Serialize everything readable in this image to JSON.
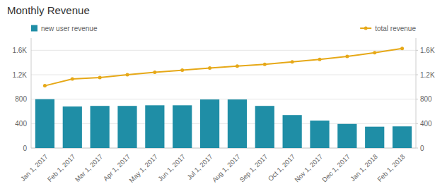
{
  "chart_data": {
    "type": "bar",
    "title": "Monthly Revenue",
    "categories": [
      "Jan 1, 2017",
      "Feb 1, 2017",
      "Mar 1, 2017",
      "Apr 1, 2017",
      "May 1, 2017",
      "Jun 1, 2017",
      "Jul 1, 2017",
      "Aug 1, 2017",
      "Sep 1, 2017",
      "Oct 1, 2017",
      "Nov 1, 2017",
      "Dec 1, 2017",
      "Jan 1, 2018",
      "Feb 1, 2018"
    ],
    "series": [
      {
        "name": "new user revenue",
        "type": "bar",
        "color": "#1f8ea6",
        "values": [
          800,
          680,
          690,
          690,
          700,
          700,
          795,
          795,
          690,
          540,
          450,
          395,
          350,
          355
        ]
      },
      {
        "name": "total revenue",
        "type": "line",
        "color": "#e6a817",
        "marker": "circle",
        "axis": "y2",
        "values": [
          1020,
          1130,
          1155,
          1200,
          1240,
          1275,
          1310,
          1340,
          1370,
          1410,
          1450,
          1500,
          1560,
          1630
        ]
      }
    ],
    "ylim": [
      0,
      1800
    ],
    "yticks": [
      0,
      400,
      800,
      {
        "value": 1200,
        "label": "1.2K"
      },
      {
        "value": 1600,
        "label": "1.6K"
      }
    ],
    "y2lim": [
      0,
      1800
    ],
    "y2ticks": [
      0,
      400,
      800,
      {
        "value": 1200,
        "label": "1.2K"
      },
      {
        "value": 1600,
        "label": "1.6K"
      }
    ],
    "grid": true,
    "legend": "top"
  }
}
